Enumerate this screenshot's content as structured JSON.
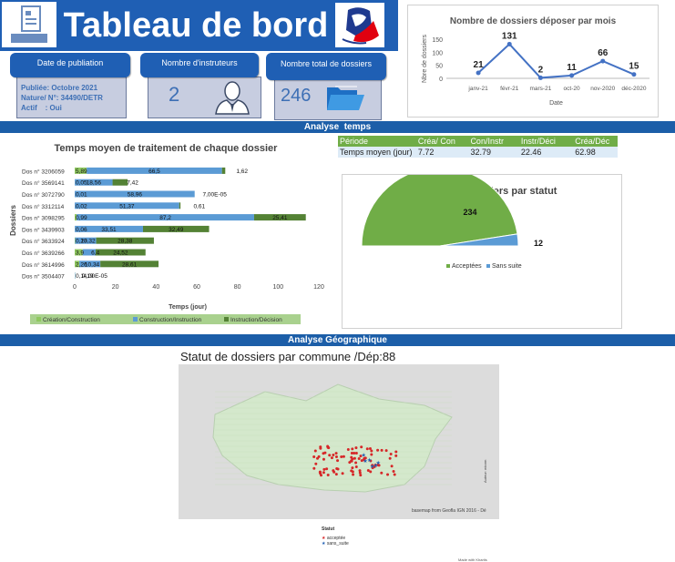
{
  "header": {
    "title": "Tableau de bord",
    "colors": {
      "brand": "#1f5fb4",
      "panel": "#c7cde0"
    }
  },
  "cards": {
    "publication": {
      "label": "Date de publiation",
      "line1": "Publiée: Octobre 2021",
      "line2": "Nature/ N°: 34490/DETR",
      "line3": "Actif    : Oui"
    },
    "instructeurs": {
      "label": "Nombre d'instruteurs",
      "value": "2"
    },
    "dossiers": {
      "label": "Nombre total de dossiers",
      "value": "246"
    }
  },
  "sections": {
    "temps": "Analyse  temps",
    "geo": "Analyse Géographique"
  },
  "table": {
    "headers": [
      "Période",
      "Créa/ Con",
      "Con/Instr",
      "Instr/Déci",
      "Créa/Déc"
    ],
    "row": [
      "Temps moyen (jour)",
      "7.72",
      "32.79",
      "22.46",
      "62.98"
    ]
  },
  "map": {
    "title": "Statut de dossiers par commune /Dép:88",
    "credit": "basemap from Geofla IGN 2016 - Dé",
    "side_credit": "Auteur: wicom",
    "made_with": "Made with Khartis",
    "legend_title": "Statut",
    "legend_items": [
      "acceptée",
      "sans_suite"
    ],
    "colors": {
      "accepte": "#d62728",
      "sans_suite": "#1f5fb4",
      "land": "#d4e8cc",
      "outside": "#dcdcdc"
    }
  },
  "chart_data": [
    {
      "type": "line",
      "title": "Nombre de dossiers déposer par mois",
      "xlabel": "Date",
      "ylabel": "Nbre de dossiers",
      "categories": [
        "janv-21",
        "févr-21",
        "mars-21",
        "oct-20",
        "nov-2020",
        "déc-2020"
      ],
      "values": [
        21,
        131,
        2,
        11,
        66,
        15
      ],
      "ylim": [
        0,
        150
      ],
      "yticks": [
        0,
        50,
        100,
        150
      ],
      "color": "#4472c4"
    },
    {
      "type": "bar",
      "orientation": "horizontal",
      "stacked": true,
      "title": "Temps moyen de traitement de chaque dossier",
      "xlabel": "Temps (jour)",
      "ylabel": "Dossiers",
      "xlim": [
        0,
        120
      ],
      "xticks": [
        0,
        20,
        40,
        60,
        80,
        100,
        120
      ],
      "categories": [
        "Dos n° 3206059",
        "Dos n° 3569141",
        "Dos n° 3072790",
        "Dos n° 3312114",
        "Dos n° 3098295",
        "Dos n° 3439903",
        "Dos n° 3633924",
        "Dos n° 3639266",
        "Dos n° 3614996",
        "Dos n° 3504407"
      ],
      "series": [
        {
          "name": "Création/Construction",
          "color": "#8fc860",
          "values": [
            5.89,
            0.05,
            0.01,
            0.02,
            0.99,
            0.06,
            0.23,
            3.9,
            2.26,
            0.1
          ]
        },
        {
          "name": "Construction/Instruction",
          "color": "#5b9bd5",
          "values": [
            66.5,
            18.56,
            58.96,
            51.37,
            87.2,
            33.51,
            10.32,
            6.4,
            10.34,
            0.19
          ]
        },
        {
          "name": "Instruction/Décision",
          "color": "#548235",
          "values": [
            1.62,
            7.42,
            7e-05,
            0.61,
            25.41,
            32.49,
            28.38,
            24.52,
            28.61,
            4e-05
          ]
        }
      ],
      "labels": [
        [
          "5,89",
          "66,5",
          "1,62"
        ],
        [
          "0,05",
          "18,56",
          "7,42"
        ],
        [
          "0,01",
          "58,96",
          "7,00E-05"
        ],
        [
          "0,02",
          "51,37",
          "0,61"
        ],
        [
          "0,99",
          "87,2",
          "25,41"
        ],
        [
          "0,06",
          "33,51",
          "32,49"
        ],
        [
          "0,23",
          "10,32",
          "28,38"
        ],
        [
          "3,9",
          "6,4",
          "24,52"
        ],
        [
          "2,26",
          "10,34",
          "28,61"
        ],
        [
          "0,1",
          "0,19",
          "4,00E-05"
        ]
      ],
      "legend": "bottom"
    },
    {
      "type": "pie",
      "title": "Nombre  de dossiers  par statut",
      "categories": [
        "Acceptées",
        "Sans suite"
      ],
      "values": [
        234,
        12
      ],
      "colors": [
        "#70ad47",
        "#5b9bd5"
      ],
      "legend": "bottom"
    }
  ]
}
